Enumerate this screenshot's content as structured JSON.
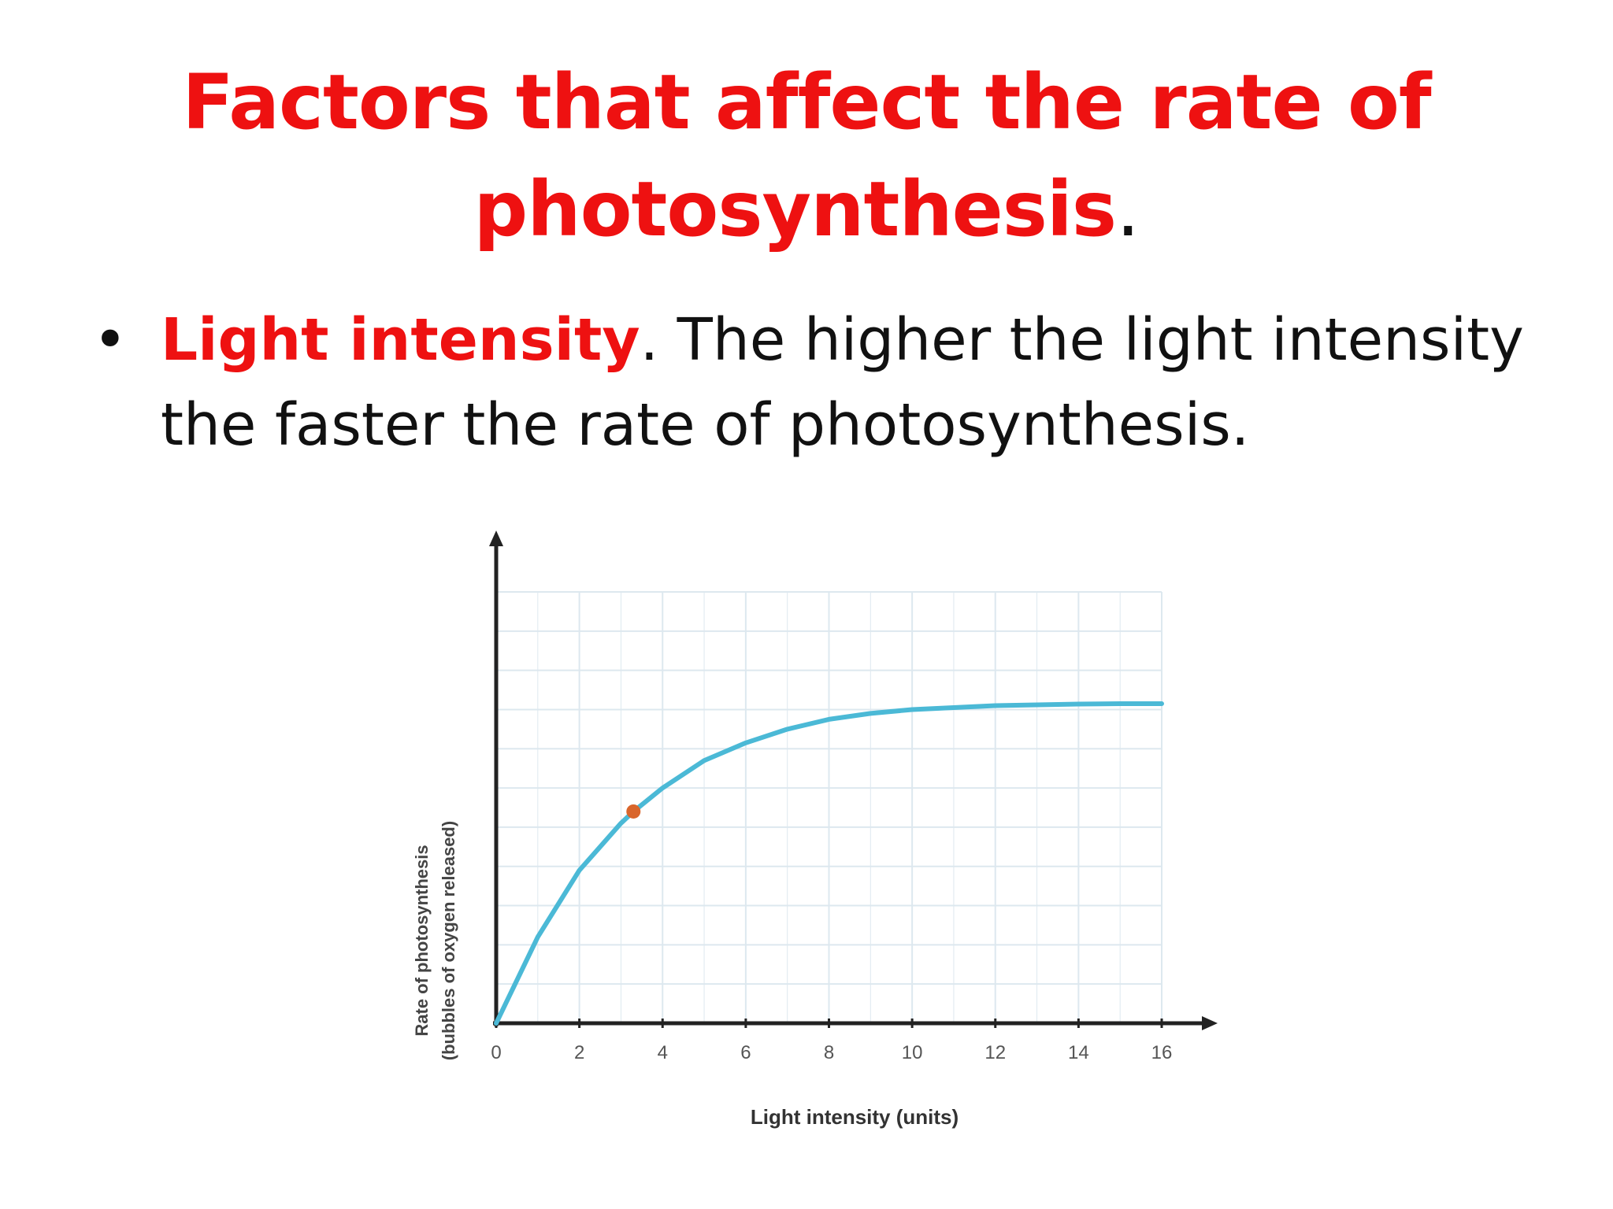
{
  "slide": {
    "title_main": "Factors that affect the rate of photosynthesis",
    "title_period": ".",
    "bullet_marker": "•",
    "bullet_key": "Light intensity",
    "bullet_period": ".",
    "bullet_text": " The higher the light intensity the faster the rate of photosynthesis."
  },
  "chart_data": {
    "type": "line",
    "title": "",
    "xlabel": "Light intensity (units)",
    "ylabel_line1": "Rate of photosynthesis",
    "ylabel_line2": "(bubbles of oxygen released)",
    "xlim": [
      0,
      16
    ],
    "ylim": [
      0,
      11
    ],
    "x_ticks": [
      "0",
      "2",
      "4",
      "6",
      "8",
      "10",
      "12",
      "14",
      "16"
    ],
    "grid": true,
    "series": [
      {
        "color": "#4bb9d6",
        "x": [
          0,
          1,
          2,
          3,
          3.3,
          4,
          5,
          6,
          7,
          8,
          9,
          10,
          11,
          12,
          13,
          14,
          15,
          16
        ],
        "y": [
          0,
          2.2,
          3.9,
          5.1,
          5.4,
          6.0,
          6.7,
          7.15,
          7.5,
          7.75,
          7.9,
          8.0,
          8.05,
          8.1,
          8.12,
          8.14,
          8.15,
          8.15
        ]
      }
    ],
    "highlight_point": {
      "x": 3.3,
      "y": 5.4,
      "color": "#d9652b"
    },
    "axis_color": "#222222",
    "grid_color": "#dde8ef"
  }
}
